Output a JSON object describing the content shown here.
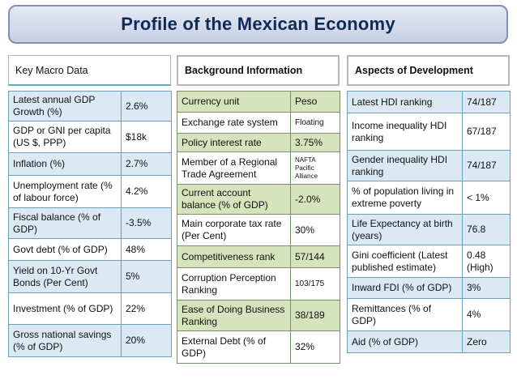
{
  "title": "Profile of the Mexican Economy",
  "colors": {
    "green_row": "#d6e3bc",
    "blue_row": "#dbe9f3",
    "title_text": "#0f2a56"
  },
  "panels": [
    {
      "heading": "Key Macro Data",
      "rows": [
        {
          "label": "Latest annual GDP Growth (%)",
          "value": "2.6%",
          "shade": true,
          "h": 37
        },
        {
          "label": "GDP or GNI per capita (US $, PPP)",
          "value": "$18k",
          "shade": false,
          "h": 39
        },
        {
          "label": "Inflation (%)",
          "value": "2.7%",
          "shade": true,
          "h": 28
        },
        {
          "label": "Unemployment rate (% of labour force)",
          "value": "4.2%",
          "shade": false,
          "h": 40
        },
        {
          "label": "Fiscal balance (% of GDP)",
          "value": "-3.5%",
          "shade": true,
          "h": 38
        },
        {
          "label": "Govt debt (% of GDP)",
          "value": "48%",
          "shade": false,
          "h": 27
        },
        {
          "label": "Yield on 10-Yr Govt Bonds (Per Cent)",
          "value": "5%",
          "shade": true,
          "h": 40
        },
        {
          "label": "Investment  (% of GDP)",
          "value": "22%",
          "shade": false,
          "h": 39
        },
        {
          "label": "Gross national savings (% of GDP)",
          "value": "20%",
          "shade": true,
          "h": 40
        }
      ]
    },
    {
      "heading": "Background Information",
      "rows": [
        {
          "label": "Currency unit",
          "value": "Peso",
          "shade": true,
          "h": 26
        },
        {
          "label": "Exchange rate system",
          "value": "Floating",
          "shade": false,
          "h": 26,
          "vsize": "xs"
        },
        {
          "label": "Policy interest rate",
          "value": "3.75%",
          "shade": true,
          "h": 23
        },
        {
          "label": "Member of a Regional Trade Agreement",
          "value": "NAFTA Pacific Alliance",
          "shade": false,
          "h": 40,
          "vsize": "small"
        },
        {
          "label": "Current account balance (% of GDP)",
          "value": "-2.0%",
          "shade": true,
          "h": 37
        },
        {
          "label": "Main corporate tax rate (Per Cent)",
          "value": "30%",
          "shade": false,
          "h": 39
        },
        {
          "label": "Competitiveness rank",
          "value": "57/144",
          "shade": true,
          "h": 27
        },
        {
          "label": "Corruption Perception Ranking",
          "value": "103/175",
          "shade": false,
          "h": 40,
          "vsize": "xs"
        },
        {
          "label": "Ease of Doing Business Ranking",
          "value": "38/189",
          "shade": true,
          "h": 38
        },
        {
          "label": "External Debt (% of GDP)",
          "value": "32%",
          "shade": false,
          "h": 40
        }
      ]
    },
    {
      "heading": "Aspects of Development",
      "rows": [
        {
          "label": "Latest HDI ranking",
          "value": "74/187",
          "shade": true,
          "h": 27
        },
        {
          "label": "Income inequality HDI ranking",
          "value": "67/187",
          "shade": false,
          "h": 46
        },
        {
          "label": "Gender inequality HDI ranking",
          "value": "74/187",
          "shade": true,
          "h": 38
        },
        {
          "label": "% of population living in extreme poverty",
          "value": "< 1%",
          "shade": false,
          "h": 41
        },
        {
          "label": "Life Expectancy at birth (years)",
          "value": "76.8",
          "shade": true,
          "h": 38
        },
        {
          "label": "Gini coefficient (Latest published estimate)",
          "value": "0.48 (High)",
          "shade": false,
          "h": 40
        },
        {
          "label": "Inward FDI (% of GDP)",
          "value": "3%",
          "shade": true,
          "h": 26
        },
        {
          "label": "Remittances (% of GDP)",
          "value": "4%",
          "shade": false,
          "h": 40
        },
        {
          "label": "Aid (% of GDP)",
          "value": "Zero",
          "shade": true,
          "h": 27
        }
      ]
    }
  ]
}
